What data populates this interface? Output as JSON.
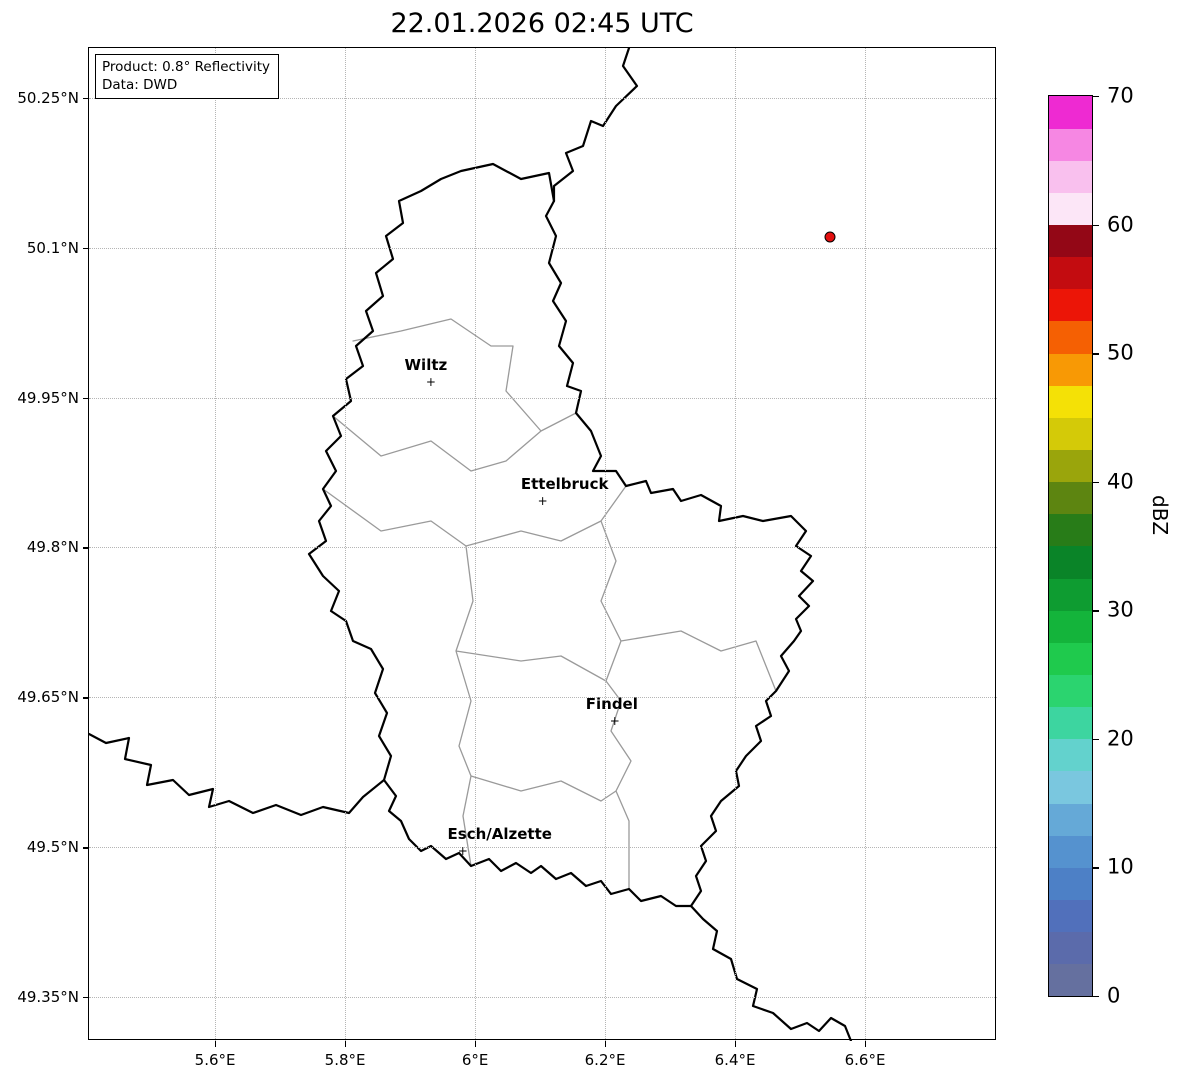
{
  "title": "22.01.2026 02:45 UTC",
  "info_box": {
    "line1": "Product: 0.8° Reflectivity",
    "line2": "Data: DWD"
  },
  "map": {
    "extent": {
      "lon_min": 5.406,
      "lon_max": 6.803,
      "lat_min": 49.306,
      "lat_max": 50.3
    },
    "lon_ticks": [
      {
        "value": 5.6,
        "label": "5.6°E"
      },
      {
        "value": 5.8,
        "label": "5.8°E"
      },
      {
        "value": 6.0,
        "label": "6°E"
      },
      {
        "value": 6.2,
        "label": "6.2°E"
      },
      {
        "value": 6.4,
        "label": "6.4°E"
      },
      {
        "value": 6.6,
        "label": "6.6°E"
      }
    ],
    "lat_ticks": [
      {
        "value": 50.25,
        "label": "50.25°N"
      },
      {
        "value": 50.1,
        "label": "50.1°N"
      },
      {
        "value": 49.95,
        "label": "49.95°N"
      },
      {
        "value": 49.8,
        "label": "49.8°N"
      },
      {
        "value": 49.65,
        "label": "49.65°N"
      },
      {
        "value": 49.5,
        "label": "49.5°N"
      },
      {
        "value": 49.35,
        "label": "49.35°N"
      }
    ],
    "cities": [
      {
        "name": "Wiltz",
        "lon": 5.932,
        "lat": 49.966,
        "label_dx": -5
      },
      {
        "name": "Ettelbruck",
        "lon": 6.104,
        "lat": 49.847,
        "label_dx": 22
      },
      {
        "name": "Findel",
        "lon": 6.215,
        "lat": 49.626,
        "label_dx": -3
      },
      {
        "name": "Esch/Alzette",
        "lon": 5.981,
        "lat": 49.496,
        "label_dx": 37
      }
    ],
    "radar_marker": {
      "lon": 6.546,
      "lat": 50.111,
      "color": "#e31010"
    }
  },
  "colorbar": {
    "label": "dBZ",
    "min": 0,
    "max": 70,
    "ticks": [
      0,
      10,
      20,
      30,
      40,
      50,
      60,
      70
    ],
    "colors_bottom_to_top": [
      "#65709f",
      "#5b6bab",
      "#5170bb",
      "#4d80c6",
      "#5592cf",
      "#65a9d7",
      "#7ac7df",
      "#63d2cd",
      "#3dd5a0",
      "#2bd46f",
      "#1fca4d",
      "#14b43b",
      "#0e9c31",
      "#0a8428",
      "#287c18",
      "#5d8511",
      "#9aa50c",
      "#d4ca08",
      "#f4e106",
      "#f89905",
      "#f56003",
      "#ec1507",
      "#c30c10",
      "#930716",
      "#fce6f7",
      "#f9c0ee",
      "#f687e3",
      "#ee2ad2"
    ]
  }
}
